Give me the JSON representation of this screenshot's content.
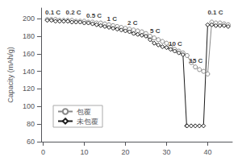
{
  "chart_data": {
    "type": "line",
    "ylabel": "Capacity (mAh/g)",
    "xlim": [
      -0.5,
      46
    ],
    "ylim": [
      60,
      212
    ],
    "xticks": [
      0,
      10,
      20,
      30,
      40
    ],
    "yticks": [
      60,
      80,
      100,
      120,
      140,
      160,
      180,
      200
    ],
    "grid": false,
    "legend": "lower left",
    "series": [
      {
        "name": "包覆",
        "color": "#888888",
        "marker": "circle",
        "x": [
          1,
          2,
          3,
          4,
          5,
          6,
          7,
          8,
          9,
          10,
          11,
          12,
          13,
          14,
          15,
          16,
          17,
          18,
          19,
          20,
          21,
          22,
          23,
          24,
          25,
          26,
          27,
          28,
          29,
          30,
          31,
          32,
          33,
          34,
          35,
          36,
          37,
          38,
          39,
          40,
          41,
          42,
          43,
          44,
          45
        ],
        "values": [
          199,
          199,
          199,
          198,
          198,
          198,
          198,
          197,
          197,
          197,
          196,
          196,
          195,
          195,
          194,
          193,
          192,
          191,
          190,
          189,
          188,
          187,
          186,
          185,
          183,
          180,
          178,
          176,
          174,
          172,
          168,
          165,
          163,
          161,
          158,
          150,
          145,
          142,
          140,
          137,
          196,
          195,
          195,
          194,
          193
        ]
      },
      {
        "name": "未包覆",
        "color": "#1a1a1a",
        "marker": "diamond",
        "x": [
          1,
          2,
          3,
          4,
          5,
          6,
          7,
          8,
          9,
          10,
          11,
          12,
          13,
          14,
          15,
          16,
          17,
          18,
          19,
          20,
          21,
          22,
          23,
          24,
          25,
          26,
          27,
          28,
          29,
          30,
          31,
          32,
          33,
          34,
          34.9,
          35,
          36,
          37,
          38,
          39,
          40,
          41,
          42,
          43,
          44,
          45
        ],
        "values": [
          198,
          198,
          197,
          197,
          197,
          197,
          196,
          196,
          196,
          195,
          195,
          194,
          193,
          192,
          191,
          190,
          189,
          188,
          187,
          186,
          185,
          183,
          182,
          181,
          180,
          176,
          172,
          170,
          168,
          167,
          165,
          163,
          161,
          159,
          78,
          78,
          78,
          78,
          78,
          78,
          193,
          193,
          192,
          192,
          192,
          191
        ]
      }
    ],
    "annotations": [
      {
        "text": "0.1 C",
        "x": 0.5,
        "y": 203
      },
      {
        "text": "0.2 C",
        "x": 5.5,
        "y": 203
      },
      {
        "text": "0.5 C",
        "x": 10.5,
        "y": 200
      },
      {
        "text": "1 C",
        "x": 15.5,
        "y": 196
      },
      {
        "text": "2 C",
        "x": 20.5,
        "y": 191
      },
      {
        "text": "5 C",
        "x": 26.0,
        "y": 182
      },
      {
        "text": "10 C",
        "x": 30.5,
        "y": 168
      },
      {
        "text": "15 C",
        "x": 35.5,
        "y": 148
      },
      {
        "text": "0.1 C",
        "x": 40.0,
        "y": 203
      }
    ]
  }
}
